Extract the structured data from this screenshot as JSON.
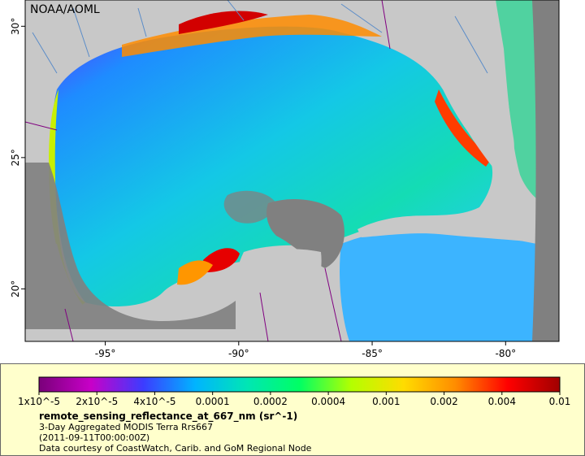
{
  "map": {
    "credit": "NOAA/AOML",
    "lon_range": [
      -98,
      -78
    ],
    "lat_range": [
      18,
      31
    ],
    "lon_ticks": [
      {
        "value": -95,
        "label": "-95°"
      },
      {
        "value": -90,
        "label": "-90°"
      },
      {
        "value": -85,
        "label": "-85°"
      },
      {
        "value": -80,
        "label": "-80°"
      }
    ],
    "lat_ticks": [
      {
        "value": 30,
        "label": "30°"
      },
      {
        "value": 25,
        "label": "25°"
      },
      {
        "value": 20,
        "label": "20°"
      }
    ],
    "colors": {
      "land": "#c8c8c8",
      "no_data": "#808080",
      "frame": "#000000"
    }
  },
  "legend": {
    "tick_labels": [
      "1x10^-5",
      "2x10^-5",
      "4x10^-5",
      "0.0001",
      "0.0002",
      "0.0004",
      "0.001",
      "0.002",
      "0.004",
      "0.01"
    ],
    "scale": "log",
    "range": [
      1e-05,
      0.01
    ],
    "colormap": [
      "#7a007a",
      "#c800c8",
      "#3c3cff",
      "#00b4ff",
      "#00e6b4",
      "#00ff64",
      "#b4ff00",
      "#ffdc00",
      "#ff8c00",
      "#ff0000",
      "#a00000"
    ],
    "variable": "remote_sensing_reflectance_at_667_nm (sr^-1)",
    "subtitle": "3-Day Aggregated MODIS Terra Rrs667",
    "timestamp": "(2011-09-11T00:00:00Z)",
    "courtesy": "Data courtesy of CoastWatch, Carib. and GoM Regional Node"
  }
}
